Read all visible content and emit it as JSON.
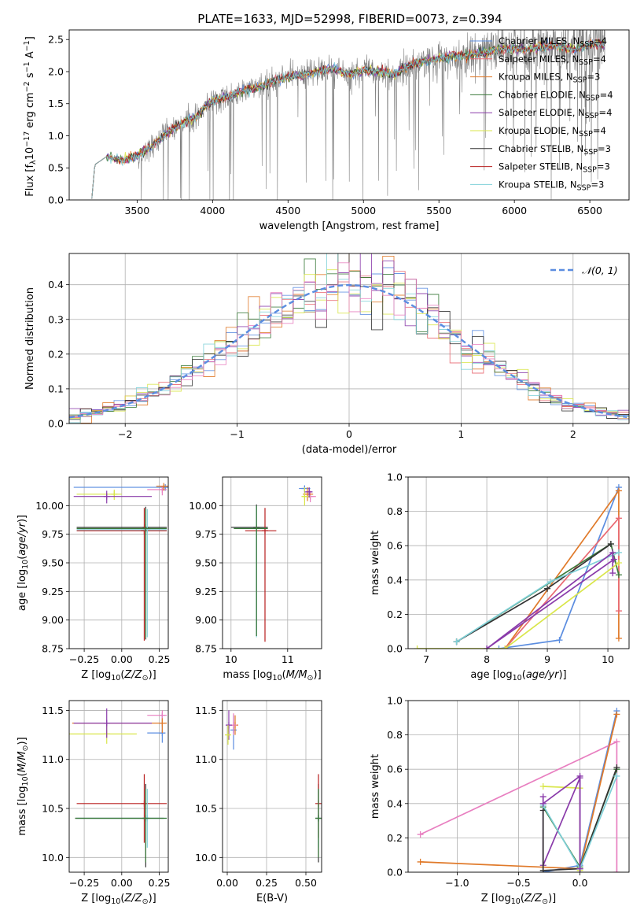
{
  "figure": {
    "title": "PLATE=1633, MJD=52998, FIBERID=0073, z=0.394"
  },
  "colors": {
    "chabrier_miles": "#5B8DE0",
    "salpeter_miles": "#E96A73",
    "kroupa_miles": "#E07A2A",
    "chabrier_elodie": "#3A7A3A",
    "salpeter_elodie": "#8A3BAA",
    "kroupa_elodie": "#D9E64A",
    "chabrier_stelib": "#333333",
    "salpeter_stelib": "#B81F1F",
    "kroupa_stelib": "#7FD0D8",
    "pink": "#E87FC0",
    "data": "#808080",
    "grid": "#B0B0B0"
  },
  "chart_data": [
    {
      "id": "spectrum",
      "type": "line",
      "title": "PLATE=1633, MJD=52998, FIBERID=0073, z=0.394",
      "xlabel": "wavelength [Angstrom, rest frame]",
      "ylabel_parts": [
        "Flux [f",
        "λ",
        "10",
        "−17",
        " erg cm",
        "−2",
        " s",
        "−1",
        " A",
        "−1",
        "]"
      ],
      "xlim": [
        3050,
        6760
      ],
      "ylim": [
        0,
        2.65
      ],
      "xticks": [
        3500,
        4000,
        4500,
        5000,
        5500,
        6000,
        6500
      ],
      "yticks": [
        0.0,
        0.5,
        1.0,
        1.5,
        2.0,
        2.5
      ],
      "grid": false,
      "legend_position": "upper right",
      "legend": [
        {
          "label": "Chabrier MILES",
          "nssp": "4",
          "color": "#5B8DE0"
        },
        {
          "label": "Salpeter MILES",
          "nssp": "4",
          "color": "#E96A73"
        },
        {
          "label": "Kroupa MILES",
          "nssp": "3",
          "color": "#E07A2A"
        },
        {
          "label": "Chabrier ELODIE",
          "nssp": "4",
          "color": "#3A7A3A"
        },
        {
          "label": "Salpeter ELODIE",
          "nssp": "4",
          "color": "#8A3BAA"
        },
        {
          "label": "Kroupa ELODIE",
          "nssp": "4",
          "color": "#D9E64A"
        },
        {
          "label": "Chabrier STELIB",
          "nssp": "3",
          "color": "#333333"
        },
        {
          "label": "Salpeter STELIB",
          "nssp": "3",
          "color": "#B81F1F"
        },
        {
          "label": "Kroupa STELIB",
          "nssp": "3",
          "color": "#7FD0D8"
        }
      ],
      "model_continuum": {
        "x": [
          3200,
          3220,
          3300,
          3400,
          3500,
          3600,
          3700,
          3800,
          3900,
          3950,
          4000,
          4100,
          4200,
          4300,
          4400,
          4500,
          4600,
          4700,
          4800,
          4900,
          5000,
          5100,
          5200,
          5300,
          5400,
          5500,
          5600,
          5700,
          5800,
          5900,
          6000,
          6100,
          6200,
          6300,
          6400,
          6500,
          6600
        ],
        "y": [
          0.02,
          0.55,
          0.68,
          0.62,
          0.68,
          0.85,
          1.05,
          1.2,
          1.3,
          1.45,
          1.55,
          1.6,
          1.7,
          1.75,
          1.85,
          1.92,
          1.95,
          2.0,
          2.05,
          1.95,
          2.02,
          2.0,
          1.95,
          2.1,
          2.15,
          2.2,
          2.25,
          2.25,
          2.3,
          2.35,
          2.35,
          2.35,
          2.4,
          2.4,
          2.35,
          2.42,
          2.45
        ]
      },
      "data_range": [
        3500,
        6600
      ]
    },
    {
      "id": "residuals",
      "type": "line",
      "xlabel": "(data-model)/error",
      "ylabel": "Normed distribution",
      "xlim": [
        -2.5,
        2.5
      ],
      "ylim": [
        0,
        0.49
      ],
      "xticks": [
        -2,
        -1,
        0,
        1,
        2
      ],
      "yticks": [
        0.0,
        0.1,
        0.2,
        0.3,
        0.4
      ],
      "grid": true,
      "legend_position": "upper right",
      "legend": [
        {
          "label": "𝒩(0, 1)",
          "color": "#5B8DE0",
          "dashed": true
        }
      ],
      "bin_width": 0.1,
      "histogram_colors": [
        "#5B8DE0",
        "#E96A73",
        "#E07A2A",
        "#3A7A3A",
        "#8A3BAA",
        "#D9E64A",
        "#333333",
        "#7FD0D8",
        "#E87FC0"
      ]
    },
    {
      "id": "age_vs_Z",
      "type": "scatter",
      "xlabel": "Z [log10(Z/Z☉)]",
      "ylabel": "age  [log10(age/yr)]",
      "xlim": [
        -0.35,
        0.31
      ],
      "ylim": [
        8.75,
        10.25
      ],
      "xticks": [
        -0.25,
        0.0,
        0.25
      ],
      "yticks": [
        8.75,
        9.0,
        9.25,
        9.5,
        9.75,
        10.0
      ],
      "grid": true,
      "points": [
        {
          "x": 0.29,
          "y": 10.16,
          "xerr": [
            0.61,
            0.02
          ],
          "yerr": [
            0.03,
            0.01
          ],
          "color": "#5B8DE0"
        },
        {
          "x": 0.27,
          "y": 10.14,
          "xerr": [
            0.1,
            0.03
          ],
          "yerr": [
            0.05,
            0.03
          ],
          "color": "#E87FC0"
        },
        {
          "x": 0.28,
          "y": 10.17,
          "xerr": [
            0.05,
            0.03
          ],
          "yerr": [
            0.04,
            0.01
          ],
          "color": "#E07A2A"
        },
        {
          "x": -0.05,
          "y": 10.1,
          "xerr": [
            0.25,
            0.05
          ],
          "yerr": [
            0.05,
            0.04
          ],
          "color": "#D9E64A"
        },
        {
          "x": -0.1,
          "y": 10.08,
          "xerr": [
            0.22,
            0.3
          ],
          "yerr": [
            0.06,
            0.05
          ],
          "color": "#8A3BAA"
        },
        {
          "x": 0.16,
          "y": 9.81,
          "xerr": [
            0.46,
            0.14
          ],
          "yerr": [
            0.98,
            0.18
          ],
          "color": "#333333"
        },
        {
          "x": 0.15,
          "y": 9.78,
          "xerr": [
            0.45,
            0.15
          ],
          "yerr": [
            0.96,
            0.2
          ],
          "color": "#B81F1F"
        },
        {
          "x": 0.17,
          "y": 9.79,
          "xerr": [
            0.47,
            0.13
          ],
          "yerr": [
            0.94,
            0.18
          ],
          "color": "#7FD0D8"
        },
        {
          "x": 0.16,
          "y": 9.8,
          "xerr": [
            0.46,
            0.14
          ],
          "yerr": [
            0.96,
            0.17
          ],
          "color": "#3A7A3A"
        }
      ]
    },
    {
      "id": "age_vs_mass",
      "type": "scatter",
      "xlabel": "mass [log10(M/M☉)]",
      "ylabel": "",
      "xlim": [
        9.85,
        11.6
      ],
      "ylim": [
        8.75,
        10.25
      ],
      "xticks": [
        10,
        11
      ],
      "yticks": [
        8.75,
        9.0,
        9.25,
        9.5,
        9.75,
        10.0
      ],
      "grid": true,
      "points": [
        {
          "x": 11.3,
          "y": 10.15,
          "xerr": [
            0.1,
            0.1
          ],
          "yerr": [
            0.03,
            0.02
          ],
          "color": "#5B8DE0"
        },
        {
          "x": 11.4,
          "y": 10.08,
          "xerr": [
            0.1,
            0.1
          ],
          "yerr": [
            0.05,
            0.05
          ],
          "color": "#E87FC0"
        },
        {
          "x": 11.35,
          "y": 10.1,
          "xerr": [
            0.08,
            0.1
          ],
          "yerr": [
            0.06,
            0.06
          ],
          "color": "#E07A2A"
        },
        {
          "x": 11.3,
          "y": 10.08,
          "xerr": [
            0.05,
            0.1
          ],
          "yerr": [
            0.08,
            0.08
          ],
          "color": "#D9E64A"
        },
        {
          "x": 11.38,
          "y": 10.12,
          "xerr": [
            0.08,
            0.06
          ],
          "yerr": [
            0.05,
            0.04
          ],
          "color": "#8A3BAA"
        },
        {
          "x": 10.45,
          "y": 9.81,
          "xerr": [
            0.45,
            0.2
          ],
          "yerr": [
            0.95,
            0.2
          ],
          "color": "#333333"
        },
        {
          "x": 10.6,
          "y": 9.78,
          "xerr": [
            0.35,
            0.2
          ],
          "yerr": [
            0.97,
            0.2
          ],
          "color": "#B81F1F"
        },
        {
          "x": 10.45,
          "y": 9.8,
          "xerr": [
            0.4,
            0.2
          ],
          "yerr": [
            0.95,
            0.2
          ],
          "color": "#7FD0D8"
        },
        {
          "x": 10.45,
          "y": 9.8,
          "xerr": [
            0.4,
            0.2
          ],
          "yerr": [
            0.94,
            0.2
          ],
          "color": "#3A7A3A"
        }
      ]
    },
    {
      "id": "weight_vs_age",
      "type": "line",
      "xlabel": "age  [log10(age/yr)]",
      "ylabel": "mass weight",
      "xlim": [
        6.7,
        10.35
      ],
      "ylim": [
        0,
        1.0
      ],
      "xticks": [
        7,
        8,
        9,
        10
      ],
      "yticks": [
        0.0,
        0.2,
        0.4,
        0.6,
        0.8,
        1.0
      ],
      "grid": true,
      "series": [
        {
          "color": "#5B8DE0",
          "x": [
            8.2,
            9.2,
            10.18
          ],
          "y": [
            0.0,
            0.05,
            0.94
          ]
        },
        {
          "color": "#E07A2A",
          "x": [
            8.3,
            10.18,
            10.18
          ],
          "y": [
            0.0,
            0.92,
            0.06
          ]
        },
        {
          "color": "#E96A73",
          "x": [
            8.3,
            10.18,
            10.18
          ],
          "y": [
            0.0,
            0.76,
            0.22
          ]
        },
        {
          "color": "#3A7A3A",
          "x": [
            7.5,
            10.05,
            10.18
          ],
          "y": [
            0.04,
            0.61,
            0.43
          ]
        },
        {
          "color": "#333333",
          "x": [
            7.5,
            9.0,
            10.05
          ],
          "y": [
            0.04,
            0.35,
            0.61
          ]
        },
        {
          "color": "#7FD0D8",
          "x": [
            7.5,
            9.05,
            10.18
          ],
          "y": [
            0.04,
            0.39,
            0.56
          ]
        },
        {
          "color": "#8A3BAA",
          "x": [
            8.0,
            10.08,
            10.08
          ],
          "y": [
            0.0,
            0.56,
            0.44
          ]
        },
        {
          "color": "#D9E64A",
          "x": [
            6.85,
            8.3,
            10.18
          ],
          "y": [
            0.0,
            0.0,
            0.5
          ]
        },
        {
          "color": "#8A3BAA",
          "x": [
            8.0,
            10.1
          ],
          "y": [
            0.0,
            0.52
          ]
        }
      ]
    },
    {
      "id": "mass_vs_Z",
      "type": "scatter",
      "xlabel": "Z [log10(Z/Z☉)]",
      "ylabel": "mass [log10(M/M☉)]",
      "xlim": [
        -0.35,
        0.31
      ],
      "ylim": [
        9.85,
        11.6
      ],
      "xticks": [
        -0.25,
        0.0,
        0.25
      ],
      "yticks": [
        10.0,
        10.5,
        11.0,
        11.5
      ],
      "grid": true,
      "points": [
        {
          "x": 0.27,
          "y": 11.27,
          "xerr": [
            0.1,
            0.02
          ],
          "yerr": [
            0.1,
            0.2
          ],
          "color": "#5B8DE0"
        },
        {
          "x": 0.27,
          "y": 11.45,
          "xerr": [
            0.1,
            0.03
          ],
          "yerr": [
            0.05,
            0.05
          ],
          "color": "#E87FC0"
        },
        {
          "x": 0.27,
          "y": 11.37,
          "xerr": [
            0.6,
            0.03
          ],
          "yerr": [
            0.1,
            0.05
          ],
          "color": "#E07A2A"
        },
        {
          "x": -0.1,
          "y": 11.26,
          "xerr": [
            0.25,
            0.2
          ],
          "yerr": [
            0.1,
            0.1
          ],
          "color": "#D9E64A"
        },
        {
          "x": -0.1,
          "y": 11.37,
          "xerr": [
            0.22,
            0.3
          ],
          "yerr": [
            0.15,
            0.15
          ],
          "color": "#8A3BAA"
        },
        {
          "x": 0.16,
          "y": 10.4,
          "xerr": [
            0.47,
            0.12
          ],
          "yerr": [
            0.5,
            0.35
          ],
          "color": "#333333"
        },
        {
          "x": 0.15,
          "y": 10.55,
          "xerr": [
            0.45,
            0.15
          ],
          "yerr": [
            0.4,
            0.3
          ],
          "color": "#B81F1F"
        },
        {
          "x": 0.17,
          "y": 10.4,
          "xerr": [
            0.47,
            0.13
          ],
          "yerr": [
            0.3,
            0.3
          ],
          "color": "#7FD0D8"
        },
        {
          "x": 0.16,
          "y": 10.4,
          "xerr": [
            0.47,
            0.14
          ],
          "yerr": [
            0.45,
            0.3
          ],
          "color": "#3A7A3A"
        }
      ]
    },
    {
      "id": "mass_vs_EBV",
      "type": "scatter",
      "xlabel": "E(B-V)",
      "ylabel": "",
      "xlim": [
        -0.03,
        0.6
      ],
      "ylim": [
        9.85,
        11.6
      ],
      "xticks": [
        0.0,
        0.25,
        0.5
      ],
      "yticks": [
        10.0,
        10.5,
        11.0,
        11.5
      ],
      "grid": true,
      "points": [
        {
          "x": 0.04,
          "y": 11.3,
          "xerr": [
            0,
            0
          ],
          "yerr": [
            0.2,
            0.15
          ],
          "color": "#5B8DE0"
        },
        {
          "x": 0.05,
          "y": 11.35,
          "xerr": [
            0,
            0
          ],
          "yerr": [
            0.1,
            0.1
          ],
          "color": "#E07A2A"
        },
        {
          "x": 0.04,
          "y": 11.35,
          "xerr": [
            0,
            0
          ],
          "yerr": [
            0.1,
            0.12
          ],
          "color": "#E87FC0"
        },
        {
          "x": 0.01,
          "y": 11.35,
          "xerr": [
            0,
            0
          ],
          "yerr": [
            0.15,
            0.15
          ],
          "color": "#8A3BAA"
        },
        {
          "x": 0.005,
          "y": 11.25,
          "xerr": [
            0,
            0
          ],
          "yerr": [
            0.1,
            0.1
          ],
          "color": "#D9E64A"
        },
        {
          "x": 0.58,
          "y": 10.4,
          "xerr": [
            0,
            0
          ],
          "yerr": [
            0.45,
            0.35
          ],
          "color": "#333333"
        },
        {
          "x": 0.58,
          "y": 10.55,
          "xerr": [
            0,
            0
          ],
          "yerr": [
            0.35,
            0.3
          ],
          "color": "#B81F1F"
        },
        {
          "x": 0.58,
          "y": 10.4,
          "xerr": [
            0,
            0
          ],
          "yerr": [
            0.3,
            0.3
          ],
          "color": "#7FD0D8"
        },
        {
          "x": 0.58,
          "y": 10.4,
          "xerr": [
            0,
            0
          ],
          "yerr": [
            0.4,
            0.3
          ],
          "color": "#3A7A3A"
        }
      ]
    },
    {
      "id": "weight_vs_Z",
      "type": "line",
      "xlabel": "Z [log10(Z/Z☉)]",
      "ylabel": "mass weight",
      "xlim": [
        -1.4,
        0.4
      ],
      "ylim": [
        0,
        1.0
      ],
      "xticks": [
        -1.0,
        -0.5,
        0.0
      ],
      "yticks": [
        0.0,
        0.2,
        0.4,
        0.6,
        0.8,
        1.0
      ],
      "grid": true,
      "series": [
        {
          "color": "#5B8DE0",
          "x": [
            -0.3,
            0.0,
            0.3
          ],
          "y": [
            0.0,
            0.04,
            0.94
          ]
        },
        {
          "color": "#E87FC0",
          "x": [
            -1.3,
            0.3,
            0.3
          ],
          "y": [
            0.22,
            0.76,
            0.0
          ]
        },
        {
          "color": "#E07A2A",
          "x": [
            -1.3,
            0.0,
            0.3
          ],
          "y": [
            0.06,
            0.02,
            0.92
          ]
        },
        {
          "color": "#D9E64A",
          "x": [
            -0.3,
            0.0,
            0.0
          ],
          "y": [
            0.5,
            0.49,
            0.01
          ]
        },
        {
          "color": "#8A3BAA",
          "x": [
            -0.3,
            -0.3,
            0.0,
            0.0
          ],
          "y": [
            0.44,
            0.04,
            0.55,
            0.02
          ]
        },
        {
          "color": "#3A7A3A",
          "x": [
            -0.3,
            0.0,
            0.3
          ],
          "y": [
            0.38,
            0.03,
            0.6
          ]
        },
        {
          "color": "#333333",
          "x": [
            -0.3,
            -0.3,
            0.0,
            0.3
          ],
          "y": [
            0.36,
            0.01,
            0.02,
            0.61
          ]
        },
        {
          "color": "#7FD0D8",
          "x": [
            -0.3,
            0.0,
            0.3
          ],
          "y": [
            0.39,
            0.02,
            0.56
          ]
        },
        {
          "color": "#8A3BAA",
          "x": [
            -0.3,
            0.0,
            0.0
          ],
          "y": [
            0.4,
            0.56,
            0.02
          ]
        }
      ]
    }
  ]
}
